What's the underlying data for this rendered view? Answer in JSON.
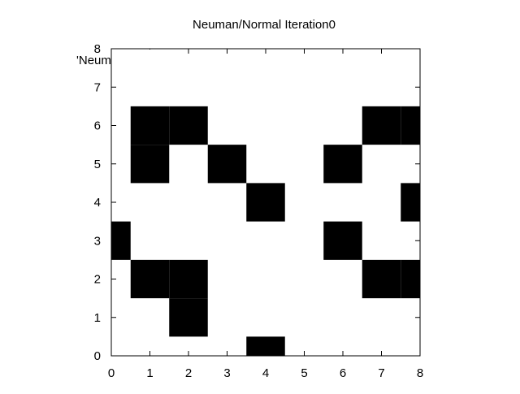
{
  "chart_data": {
    "type": "heatmap",
    "title": "Neuman/Normal Iteration0",
    "legend_label": "'Neum",
    "xlabel": "",
    "ylabel": "",
    "xlim": [
      0,
      8
    ],
    "ylim": [
      0,
      8
    ],
    "xticks": [
      "0",
      "1",
      "2",
      "3",
      "4",
      "5",
      "6",
      "7",
      "8"
    ],
    "yticks": [
      "0",
      "1",
      "2",
      "3",
      "4",
      "5",
      "6",
      "7",
      "8"
    ],
    "grid": false,
    "cell_color": "#000000",
    "background_color": "#ffffff",
    "filled_cells": [
      {
        "x": 1,
        "y": 6
      },
      {
        "x": 2,
        "y": 6
      },
      {
        "x": 7,
        "y": 6
      },
      {
        "x": 8,
        "y": 6
      },
      {
        "x": 1,
        "y": 5
      },
      {
        "x": 3,
        "y": 5
      },
      {
        "x": 6,
        "y": 5
      },
      {
        "x": 4,
        "y": 4
      },
      {
        "x": 8,
        "y": 4
      },
      {
        "x": 0,
        "y": 3
      },
      {
        "x": 6,
        "y": 3
      },
      {
        "x": 1,
        "y": 2
      },
      {
        "x": 2,
        "y": 2
      },
      {
        "x": 7,
        "y": 2
      },
      {
        "x": 8,
        "y": 2
      },
      {
        "x": 2,
        "y": 1
      },
      {
        "x": 4,
        "y": 0
      }
    ]
  }
}
